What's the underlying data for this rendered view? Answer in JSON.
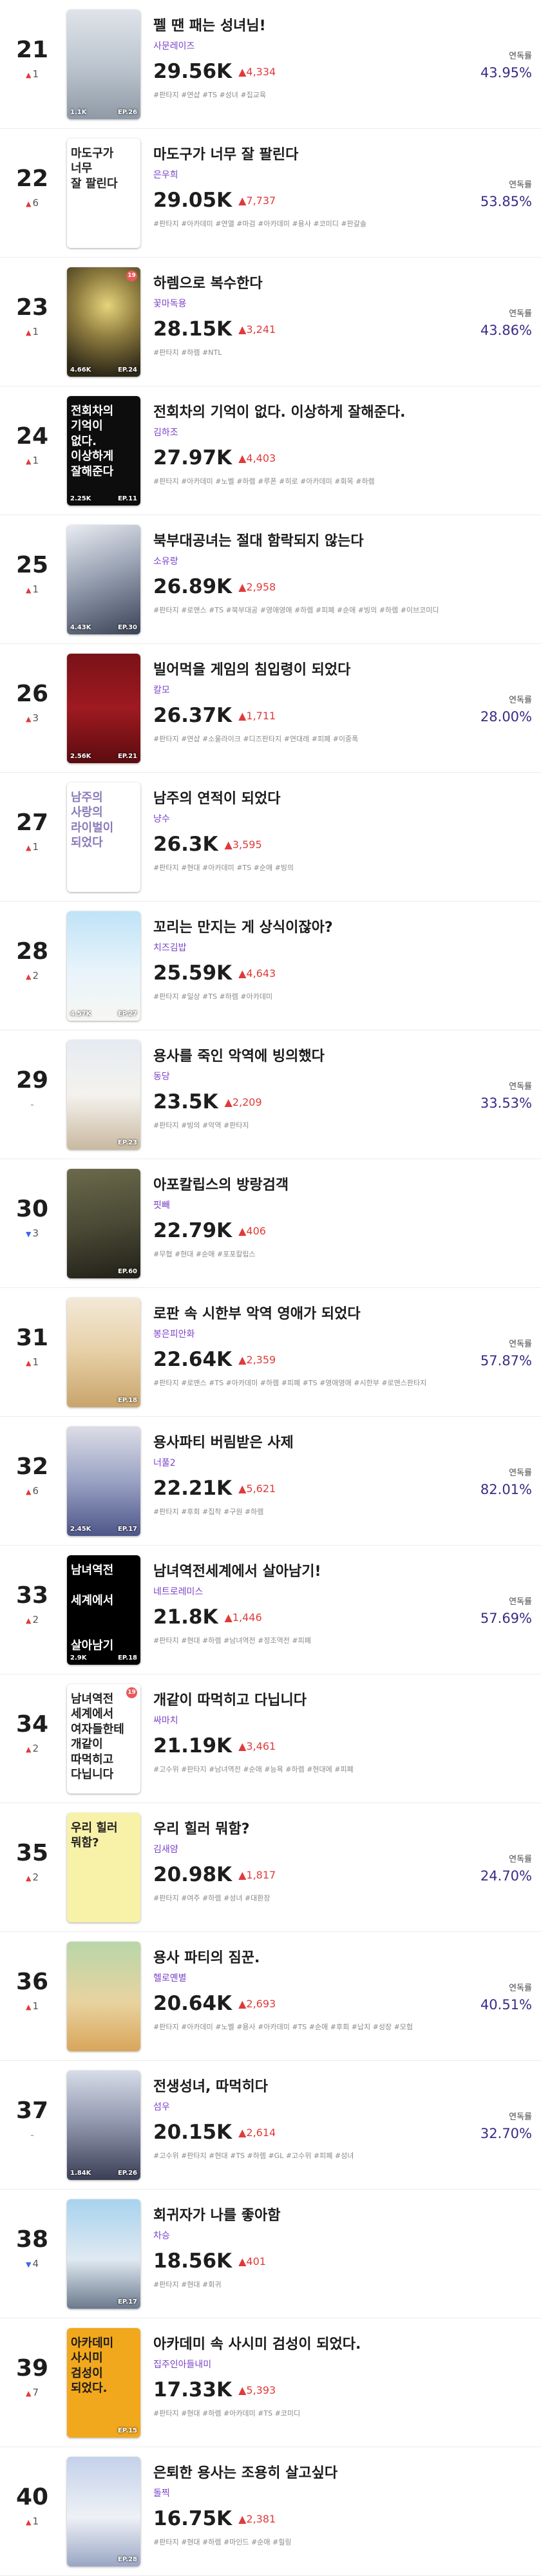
{
  "labels": {
    "rate": "연독률"
  },
  "rows": [
    {
      "rank": "21",
      "change_dir": "up",
      "change": "1",
      "title": "펠 땐 패는 성녀님!",
      "author": "사문레이즈",
      "count": "29.56K",
      "delta": "4,334",
      "tags": "#판타지 #연샵 #TS #성녀 #집교육",
      "rate": "43.95%",
      "views": "1.1K",
      "ep": "EP.26",
      "cover_text": "",
      "cover_bg": "linear-gradient(180deg,#dfe4ea 0%,#b9c2cc 55%,#8e9aa6 100%)",
      "cover_fg": "#333",
      "badge": ""
    },
    {
      "rank": "22",
      "change_dir": "up",
      "change": "6",
      "title": "마도구가 너무 잘 팔린다",
      "author": "은우희",
      "count": "29.05K",
      "delta": "7,737",
      "tags": "#판타지 #아카데미 #연앨 #마검 #아카데미 #용사 #코미디 #판갈솔",
      "rate": "53.85%",
      "views": "",
      "ep": "",
      "cover_text": "마도구가\n너무\n잘 팔린다",
      "cover_bg": "#ffffff",
      "cover_fg": "#222",
      "badge": ""
    },
    {
      "rank": "23",
      "change_dir": "up",
      "change": "1",
      "title": "하렘으로 복수한다",
      "author": "꽃마독용",
      "count": "28.15K",
      "delta": "3,241",
      "tags": "#판타지 #하렘 #NTL",
      "rate": "43.86%",
      "views": "4.66K",
      "ep": "EP.24",
      "cover_text": "",
      "cover_bg": "radial-gradient(circle at 55% 35%,#e6d47c 0%,#8c7a3e 40%,#2e2818 85%)",
      "cover_fg": "#fff",
      "badge": "19"
    },
    {
      "rank": "24",
      "change_dir": "up",
      "change": "1",
      "title": "전회차의 기억이 없다. 이상하게 잘해준다.",
      "author": "김하조",
      "count": "27.97K",
      "delta": "4,403",
      "tags": "#판타지 #아카데미 #노벨 #하렘 #루폰 #히로 #아카데미 #회목 #하렘",
      "rate": "",
      "views": "2.25K",
      "ep": "EP.11",
      "cover_text": "전회차의\n기억이\n없다.\n이상하게\n잘해준다",
      "cover_bg": "#0d0d0d",
      "cover_fg": "#ffffff",
      "badge": ""
    },
    {
      "rank": "25",
      "change_dir": "up",
      "change": "1",
      "title": "북부대공녀는 절대 함락되지 않는다",
      "author": "소유랑",
      "count": "26.89K",
      "delta": "2,958",
      "tags": "#판타지 #로맨스 #TS #북부대공 #영애영애 #하렘 #피폐 #순애 #빙의 #하렘 #이브코미디",
      "rate": "",
      "views": "4.43K",
      "ep": "EP.30",
      "cover_text": "",
      "cover_bg": "linear-gradient(160deg,#e9ecf2 0%,#9aa3b4 45%,#3a4256 100%)",
      "cover_fg": "#fff",
      "badge": ""
    },
    {
      "rank": "26",
      "change_dir": "up",
      "change": "3",
      "title": "빌어먹을 게임의 침입령이 되었다",
      "author": "칼모",
      "count": "26.37K",
      "delta": "1,711",
      "tags": "#판타지 #연샵 #소울라이크 #디즈판타지 #연대레 #피폐 #이중폭",
      "rate": "28.00%",
      "views": "2.56K",
      "ep": "EP.21",
      "cover_text": "",
      "cover_bg": "linear-gradient(180deg,#7a1218 0%,#9e1a20 50%,#5c0c10 100%)",
      "cover_fg": "#fff",
      "badge": ""
    },
    {
      "rank": "27",
      "change_dir": "up",
      "change": "1",
      "title": "남주의 연적이 되었다",
      "author": "냥수",
      "count": "26.3K",
      "delta": "3,595",
      "tags": "#판타지 #현대 #아카데미 #TS #순애 #빙의",
      "rate": "",
      "views": "",
      "ep": "",
      "cover_text": "남주의\n사랑의\n라이벌이\n되었다",
      "cover_bg": "#ffffff",
      "cover_fg": "#8a7bb8",
      "badge": ""
    },
    {
      "rank": "28",
      "change_dir": "up",
      "change": "2",
      "title": "꼬리는 만지는 게 상식이잖아?",
      "author": "치즈김밥",
      "count": "25.59K",
      "delta": "4,643",
      "tags": "#판타지 #일상 #TS #하렘 #아카데미",
      "rate": "",
      "views": "4.57K",
      "ep": "EP.27",
      "cover_text": "",
      "cover_bg": "linear-gradient(180deg,#bfe3f7 0%,#e8f4fb 55%,#f7f7f2 100%)",
      "cover_fg": "#333",
      "badge": ""
    },
    {
      "rank": "29",
      "change_dir": "same",
      "change": "-",
      "title": "용사를 죽인 악역에 빙의했다",
      "author": "동당",
      "count": "23.5K",
      "delta": "2,209",
      "tags": "#판타지 #빙의 #악역 #판타지",
      "rate": "33.53%",
      "views": "",
      "ep": "EP.23",
      "cover_text": "",
      "cover_bg": "linear-gradient(180deg,#e6ebf2 0%,#f4f2ee 50%,#c9b9a0 100%)",
      "cover_fg": "#333",
      "badge": ""
    },
    {
      "rank": "30",
      "change_dir": "down",
      "change": "3",
      "title": "아포칼립스의 방랑검객",
      "author": "핏빼",
      "count": "22.79K",
      "delta": "406",
      "tags": "#무협 #현대 #순애 #포포칼립스",
      "rate": "",
      "views": "",
      "ep": "EP.60",
      "cover_text": "",
      "cover_bg": "linear-gradient(170deg,#6b6a4a 0%,#4a4a36 50%,#222018 100%)",
      "cover_fg": "#fff",
      "badge": ""
    },
    {
      "rank": "31",
      "change_dir": "up",
      "change": "1",
      "title": "로판 속 시한부 악역 영애가 되었다",
      "author": "봉은피안화",
      "count": "22.64K",
      "delta": "2,359",
      "tags": "#판타지 #로맨스 #TS #아카데미 #하렘 #피폐 #TS #영애영애 #시한부 #로맨스판타지",
      "rate": "57.87%",
      "views": "",
      "ep": "EP.18",
      "cover_text": "",
      "cover_bg": "linear-gradient(180deg,#f3e9d8 0%,#e6cfa5 50%,#c9a46c 100%)",
      "cover_fg": "#333",
      "badge": ""
    },
    {
      "rank": "32",
      "change_dir": "up",
      "change": "6",
      "title": "용사파티 버림받은 사제",
      "author": "너풀2",
      "count": "22.21K",
      "delta": "5,621",
      "tags": "#판타지 #후회 #집착 #구원 #하렘",
      "rate": "82.01%",
      "views": "2.45K",
      "ep": "EP.17",
      "cover_text": "",
      "cover_bg": "linear-gradient(180deg,#dcdde6 0%,#9aa2c4 50%,#4d5688 100%)",
      "cover_fg": "#fff",
      "badge": ""
    },
    {
      "rank": "33",
      "change_dir": "up",
      "change": "2",
      "title": "남녀역전세계에서 살아남기!",
      "author": "네트로레미스",
      "count": "21.8K",
      "delta": "1,446",
      "tags": "#판타지 #현대 #하렘 #남녀역전 #정조역전 #피폐",
      "rate": "57.69%",
      "views": "2.9K",
      "ep": "EP.18",
      "cover_text": "남녀역전\n\n세계에서\n\n\n살아남기",
      "cover_bg": "#000000",
      "cover_fg": "#ffffff",
      "badge": ""
    },
    {
      "rank": "34",
      "change_dir": "up",
      "change": "2",
      "title": "개같이 따먹히고 다닙니다",
      "author": "싸마치",
      "count": "21.19K",
      "delta": "3,461",
      "tags": "#고수위 #판타지 #남녀역전 #순애 #능욕 #하렘 #현대에 #피폐",
      "rate": "",
      "views": "",
      "ep": "",
      "cover_text": "남녀역전\n세계에서\n여자들한테\n개같이\n따먹히고\n다닙니다",
      "cover_bg": "#ffffff",
      "cover_fg": "#222",
      "badge": "19"
    },
    {
      "rank": "35",
      "change_dir": "up",
      "change": "2",
      "title": "우리 힐러 뭐함?",
      "author": "김새얌",
      "count": "20.98K",
      "delta": "1,817",
      "tags": "#판타지 #여주 #하렘 #성녀 #대환장",
      "rate": "24.70%",
      "views": "",
      "ep": "",
      "cover_text": "우리 힐러 뭐함?",
      "cover_bg": "#f8f1a8",
      "cover_fg": "#222",
      "badge": ""
    },
    {
      "rank": "36",
      "change_dir": "up",
      "change": "1",
      "title": "용사 파티의 짐꾼.",
      "author": "헬로옌별",
      "count": "20.64K",
      "delta": "2,693",
      "tags": "#판타지 #아카데미 #노벨 #용사 #아카데미 #TS #순애 #후회 #납치 #성장 #모험",
      "rate": "40.51%",
      "views": "",
      "ep": "",
      "cover_text": "",
      "cover_bg": "linear-gradient(180deg,#b9d6a8 0%,#e8d3a0 55%,#d9a55a 100%)",
      "cover_fg": "#333",
      "badge": ""
    },
    {
      "rank": "37",
      "change_dir": "same",
      "change": "-",
      "title": "전생성녀, 따먹히다",
      "author": "섬우",
      "count": "20.15K",
      "delta": "2,614",
      "tags": "#고수위 #판타지 #현대 #TS #하렘 #GL #고수위 #피폐 #성녀",
      "rate": "32.70%",
      "views": "1.84K",
      "ep": "EP.26",
      "cover_text": "",
      "cover_bg": "linear-gradient(180deg,#d6dce8 0%,#8d93aa 50%,#3b3f55 100%)",
      "cover_fg": "#fff",
      "badge": ""
    },
    {
      "rank": "38",
      "change_dir": "down",
      "change": "4",
      "title": "회귀자가 나를 좋아함",
      "author": "차승",
      "count": "18.56K",
      "delta": "401",
      "tags": "#판타지 #현대 #회귀",
      "rate": "",
      "views": "",
      "ep": "EP.17",
      "cover_text": "",
      "cover_bg": "linear-gradient(180deg,#a7d3ee 0%,#dfe9f2 55%,#6b7a8c 100%)",
      "cover_fg": "#333",
      "badge": ""
    },
    {
      "rank": "39",
      "change_dir": "up",
      "change": "7",
      "title": "아카데미 속 사시미 검성이 되었다.",
      "author": "집주인아들내미",
      "count": "17.33K",
      "delta": "5,393",
      "tags": "#판타지 #현대 #하렘 #아카데미 #TS #코미디",
      "rate": "",
      "views": "",
      "ep": "EP.15",
      "cover_text": "아카데미\n사시미\n검성이\n되었다.",
      "cover_bg": "#f2a81d",
      "cover_fg": "#1a1a1a",
      "badge": ""
    },
    {
      "rank": "40",
      "change_dir": "up",
      "change": "1",
      "title": "은퇴한 용사는 조용히 살고싶다",
      "author": "돌찍",
      "count": "16.75K",
      "delta": "2,381",
      "tags": "#판타지 #현대 #하렘 #마인드 #순애 #힐링",
      "rate": "",
      "views": "",
      "ep": "EP.28",
      "cover_text": "",
      "cover_bg": "linear-gradient(180deg,#c3d1ea 0%,#eef1f6 55%,#9aa6c4 100%)",
      "cover_fg": "#333",
      "badge": ""
    }
  ]
}
